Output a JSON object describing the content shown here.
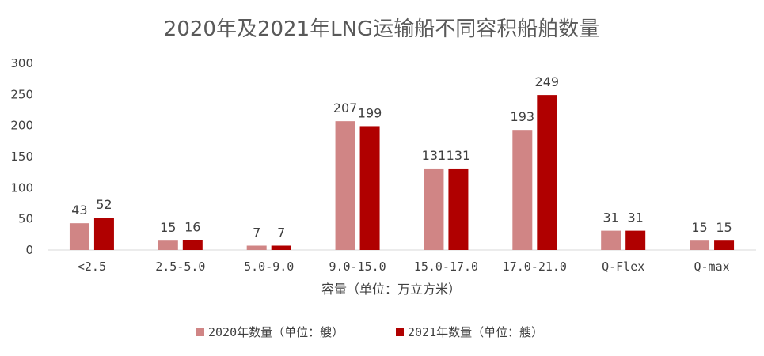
{
  "chart_data": {
    "type": "bar",
    "title": "2020年及2021年LNG运输船不同容积船舶数量",
    "xlabel": "容量（单位：万立方米）",
    "ylabel": "",
    "ylim": [
      0,
      300
    ],
    "yticks": [
      0,
      50,
      100,
      150,
      200,
      250,
      300
    ],
    "grid": false,
    "legend_position": "bottom",
    "categories": [
      "<2.5",
      "2.5-5.0",
      "5.0-9.0",
      "9.0-15.0",
      "15.0-17.0",
      "17.0-21.0",
      "Q-Flex",
      "Q-max"
    ],
    "series": [
      {
        "name": "2020年数量（单位：艘）",
        "color": "#d08585",
        "values": [
          43,
          15,
          7,
          207,
          131,
          193,
          31,
          15
        ]
      },
      {
        "name": "2021年数量（单位：艘）",
        "color": "#b00000",
        "values": [
          52,
          16,
          7,
          199,
          131,
          249,
          31,
          15
        ]
      }
    ]
  }
}
